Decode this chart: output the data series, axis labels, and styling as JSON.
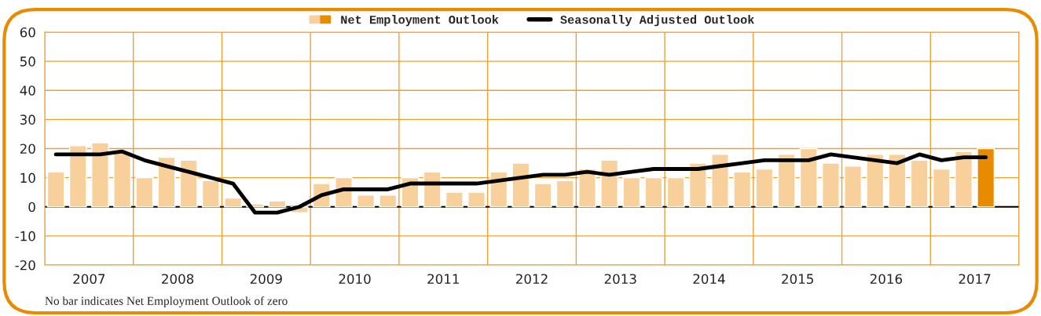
{
  "chart_data": {
    "type": "bar",
    "x": [
      2007.125,
      2007.375,
      2007.625,
      2007.875,
      2008.125,
      2008.375,
      2008.625,
      2008.875,
      2009.125,
      2009.375,
      2009.625,
      2009.875,
      2010.125,
      2010.375,
      2010.625,
      2010.875,
      2011.125,
      2011.375,
      2011.625,
      2011.875,
      2012.125,
      2012.375,
      2012.625,
      2012.875,
      2013.125,
      2013.375,
      2013.625,
      2013.875,
      2014.125,
      2014.375,
      2014.625,
      2014.875,
      2015.125,
      2015.375,
      2015.625,
      2015.875,
      2016.125,
      2016.375,
      2016.625,
      2016.875,
      2017.125,
      2017.375,
      2017.625
    ],
    "series": [
      {
        "name": "Net Employment Outlook",
        "colors": [
          "#f8d09c",
          "#f8d09c",
          "#f8d09c",
          "#f8d09c",
          "#f8d09c",
          "#f8d09c",
          "#f8d09c",
          "#f8d09c",
          "#f8d09c",
          "#f8d09c",
          "#f8d09c",
          "#f8d09c",
          "#f8d09c",
          "#f8d09c",
          "#f8d09c",
          "#f8d09c",
          "#f8d09c",
          "#f8d09c",
          "#f8d09c",
          "#f8d09c",
          "#f8d09c",
          "#f8d09c",
          "#f8d09c",
          "#f8d09c",
          "#f8d09c",
          "#f8d09c",
          "#f8d09c",
          "#f8d09c",
          "#f8d09c",
          "#f8d09c",
          "#f8d09c",
          "#f8d09c",
          "#f8d09c",
          "#f8d09c",
          "#f8d09c",
          "#f8d09c",
          "#f8d09c",
          "#f8d09c",
          "#f8d09c",
          "#f8d09c",
          "#f8d09c",
          "#f8d09c",
          "#e98b00"
        ],
        "values": [
          12,
          21,
          22,
          19,
          10,
          17,
          16,
          9,
          3,
          1,
          2,
          -2,
          8,
          10,
          4,
          4,
          10,
          12,
          5,
          5,
          12,
          15,
          8,
          9,
          13,
          16,
          10,
          10,
          10,
          15,
          18,
          12,
          13,
          18,
          20,
          15,
          14,
          18,
          18,
          16,
          13,
          19,
          20
        ]
      },
      {
        "name": "Seasonally Adjusted Outlook",
        "type": "line",
        "color": "#000000",
        "values": [
          18,
          18,
          18,
          19,
          16,
          14,
          12,
          10,
          8,
          -2,
          -2,
          0,
          4,
          6,
          6,
          6,
          8,
          8,
          8,
          8,
          9,
          10,
          11,
          11,
          12,
          11,
          12,
          13,
          13,
          13,
          14,
          15,
          16,
          16,
          16,
          18,
          17,
          16,
          15,
          18,
          16,
          17,
          17
        ]
      }
    ],
    "xlim": [
      2007,
      2018
    ],
    "xticks": [
      {
        "value": 2007,
        "label": null
      },
      {
        "value": 2007.5,
        "label": "2007"
      },
      {
        "value": 2008,
        "label": null
      },
      {
        "value": 2008.5,
        "label": "2008"
      },
      {
        "value": 2009,
        "label": null
      },
      {
        "value": 2009.5,
        "label": "2009"
      },
      {
        "value": 2010,
        "label": null
      },
      {
        "value": 2010.5,
        "label": "2010"
      },
      {
        "value": 2011,
        "label": null
      },
      {
        "value": 2011.5,
        "label": "2011"
      },
      {
        "value": 2012,
        "label": null
      },
      {
        "value": 2012.5,
        "label": "2012"
      },
      {
        "value": 2013,
        "label": null
      },
      {
        "value": 2013.5,
        "label": "2013"
      },
      {
        "value": 2014,
        "label": null
      },
      {
        "value": 2014.5,
        "label": "2014"
      },
      {
        "value": 2015,
        "label": null
      },
      {
        "value": 2015.5,
        "label": "2015"
      },
      {
        "value": 2016,
        "label": null
      },
      {
        "value": 2016.5,
        "label": "2016"
      },
      {
        "value": 2017,
        "label": null
      },
      {
        "value": 2017.5,
        "label": "2017"
      },
      {
        "value": 2018,
        "label": null
      }
    ],
    "ylim": [
      -20,
      60
    ],
    "yticks": [
      -20,
      -10,
      0,
      10,
      20,
      30,
      40,
      50,
      60
    ],
    "grid": true,
    "legend": "top",
    "ref_lines": [
      {
        "axis": "y",
        "value": 0,
        "color": "#000000"
      }
    ],
    "annotations": [
      "No bar indicates Net Employment Outlook of zero"
    ]
  }
}
